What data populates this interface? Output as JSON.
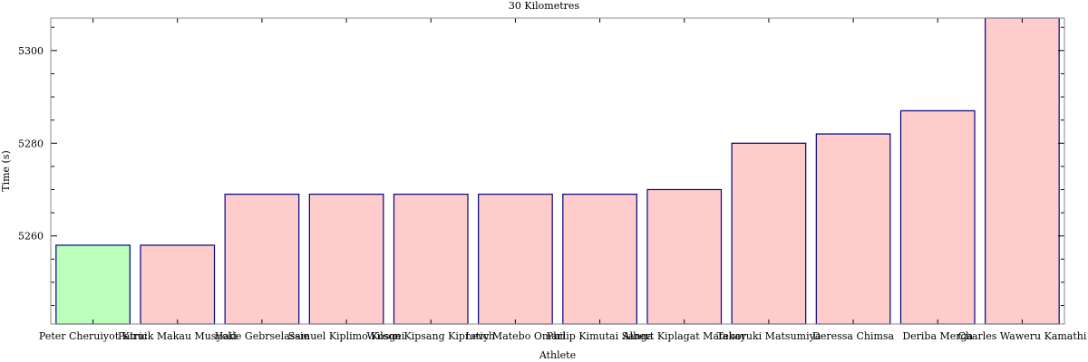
{
  "chart_data": {
    "type": "bar",
    "title": "30 Kilometres",
    "xlabel": "Athlete",
    "ylabel": "Time (s)",
    "categories": [
      "Peter Cheruiyot Kirui",
      "Patrick Makau Musyoki",
      "Haile Gebrselassie",
      "Samuel Kiplimo Kosgei",
      "Wilson Kipsang Kiprotich",
      "Levy Matebo Omari",
      "Philip Kimutai Sanga",
      "Albert Kiplagat Matebor",
      "Takayuki Matsumiya",
      "Deressa Chimsa",
      "Deriba Merga",
      "Charles Waweru Kamathi"
    ],
    "values": [
      5258,
      5258,
      5269,
      5269,
      5269,
      5269,
      5269,
      5270,
      5280,
      5282,
      5287,
      5307
    ],
    "highlight_index": 0,
    "colors": {
      "highlight": "#bbffbb",
      "default": "#ffcccc",
      "edge": "#000080"
    },
    "ylim": [
      5241,
      5307
    ],
    "yticks": [
      5260,
      5280,
      5300
    ],
    "grid": false
  }
}
